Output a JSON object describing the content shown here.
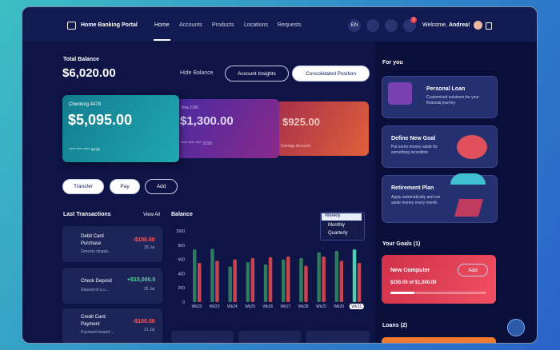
{
  "nav": {
    "brand": "Home Banking Portal",
    "links": [
      "Home",
      "Accounts",
      "Products",
      "Locations",
      "Requests"
    ],
    "language": "EN",
    "notifications": "3",
    "welcome": "Welcome, ",
    "user": "Andrea!"
  },
  "summary": {
    "label": "Total Balance",
    "amount": "$6,020.00",
    "hide": "Hide Balance",
    "insights": "Account Insights",
    "consolidated": "Consolidated Position"
  },
  "cards": [
    {
      "name": "Checking 4478",
      "amount": "$5,095.00",
      "number": "**** **** **** 4478"
    },
    {
      "name": "Visa 2190",
      "amount": "$1,300.00",
      "number": "**** **** **** 2190"
    },
    {
      "amount": "$925.00",
      "name": "Savings Account"
    }
  ],
  "actions": [
    "Transfer",
    "Pay",
    "Add"
  ],
  "transactions": {
    "title": "Last Transactions",
    "view_all": "View All",
    "items": [
      {
        "title": "Debit Card Purchase",
        "detail": "Grocery shoppi...",
        "amount": "-$150.00",
        "date": "28 Jul"
      },
      {
        "title": "Check Deposit",
        "detail": "Deposit of a c...",
        "amount": "+$15,000.0",
        "date": "25 Jul"
      },
      {
        "title": "Credit Card Payment",
        "detail": "Payment toward ...",
        "amount": "-$100.00",
        "date": "21 Jul"
      }
    ]
  },
  "balance_chart": {
    "type": "bar",
    "title": "Balance",
    "categories": [
      "Wk22",
      "Wk23",
      "Wk24",
      "Wk25",
      "Wk26",
      "Wk27",
      "Wk28",
      "Wk29",
      "Wk30",
      "Wk31"
    ],
    "series": [
      {
        "color": "#2f7a5e",
        "values": [
          740,
          750,
          500,
          560,
          530,
          600,
          620,
          700,
          720,
          740
        ]
      },
      {
        "color": "#c9434f",
        "values": [
          550,
          580,
          600,
          620,
          630,
          640,
          510,
          640,
          580,
          550
        ]
      }
    ],
    "ylim": [
      0,
      1000
    ],
    "yticks": [
      0,
      200,
      400,
      600,
      800,
      1000
    ],
    "grid": false,
    "periods": [
      "Weekly",
      "Monthly",
      "Quarterly"
    ]
  },
  "sidebar": {
    "for_you": "For you",
    "offers": [
      {
        "title": "Personal Loan",
        "text": "Customised solutions for your financial journey"
      },
      {
        "title": "Define New Goal",
        "text": "Put some money aside for something incredible"
      },
      {
        "title": "Retirement Plan",
        "text": "Apply automatically and set aside money every month."
      }
    ],
    "goals": {
      "title": "Your Goals",
      "count": "(1)",
      "item": "New Computer",
      "add": "Add",
      "progress": "$250.00 of $1,000.00"
    },
    "loans": {
      "title": "Loans",
      "count": "(2)"
    }
  }
}
